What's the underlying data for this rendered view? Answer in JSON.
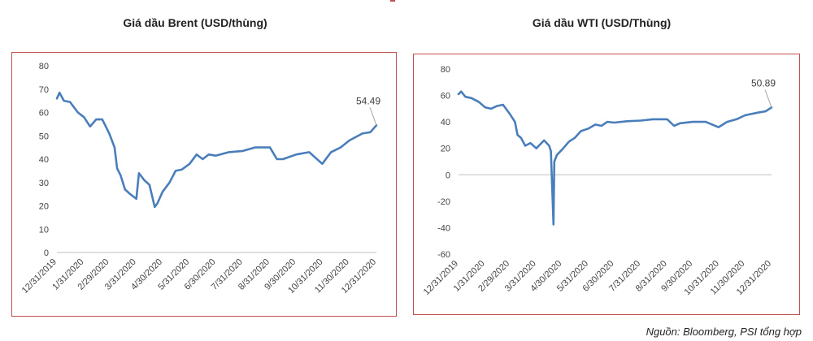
{
  "source": "Nguồn: Bloomberg, PSI tổng hợp",
  "charts": [
    {
      "title": "Giá dầu Brent (USD/thùng)"
    },
    {
      "title": "Giá dầu WTI (USD/Thùng)"
    }
  ],
  "chart_data": [
    {
      "type": "line",
      "title": "Giá dầu Brent (USD/thùng)",
      "xlabel": "",
      "ylabel": "",
      "ylim": [
        0,
        80
      ],
      "yticks": [
        0,
        10,
        20,
        30,
        40,
        50,
        60,
        70,
        80
      ],
      "xticks": [
        "12/31/2019",
        "1/31/2020",
        "2/29/2020",
        "3/31/2020",
        "4/30/2020",
        "5/31/2020",
        "6/30/2020",
        "7/31/2020",
        "8/31/2020",
        "9/30/2020",
        "10/31/2020",
        "11/30/2020",
        "12/31/2020"
      ],
      "grid": false,
      "color": "#4a7ebb",
      "end_label": "54.49",
      "x": [
        "12/31/2019",
        "1/3/2020",
        "1/8/2020",
        "1/15/2020",
        "1/24/2020",
        "1/31/2020",
        "2/7/2020",
        "2/14/2020",
        "2/21/2020",
        "2/29/2020",
        "3/6/2020",
        "3/9/2020",
        "3/13/2020",
        "3/18/2020",
        "3/24/2020",
        "3/31/2020",
        "4/3/2020",
        "4/9/2020",
        "4/15/2020",
        "4/21/2020",
        "4/24/2020",
        "4/30/2020",
        "5/8/2020",
        "5/15/2020",
        "5/22/2020",
        "5/31/2020",
        "6/8/2020",
        "6/15/2020",
        "6/22/2020",
        "6/30/2020",
        "7/15/2020",
        "7/31/2020",
        "8/14/2020",
        "8/31/2020",
        "9/8/2020",
        "9/15/2020",
        "9/30/2020",
        "10/15/2020",
        "10/30/2020",
        "11/9/2020",
        "11/20/2020",
        "11/30/2020",
        "12/15/2020",
        "12/24/2020",
        "12/31/2020"
      ],
      "series": [
        {
          "values": [
            66,
            68.5,
            65,
            64.5,
            60,
            58,
            54,
            57,
            57,
            51,
            45,
            36,
            33,
            27,
            25,
            23,
            34,
            31,
            29,
            19.5,
            21,
            26,
            30,
            35,
            35.5,
            38,
            42,
            40,
            42,
            41.5,
            43,
            43.5,
            45,
            45,
            40,
            40,
            42,
            43,
            38,
            43,
            45,
            48,
            51,
            51.5,
            54.49
          ]
        }
      ]
    },
    {
      "type": "line",
      "title": "Giá dầu WTI (USD/Thùng)",
      "xlabel": "",
      "ylabel": "",
      "ylim": [
        -60,
        80
      ],
      "yticks": [
        -60,
        -40,
        -20,
        0,
        20,
        40,
        60,
        80
      ],
      "xticks": [
        "12/31/2019",
        "1/31/2020",
        "2/29/2020",
        "3/31/2020",
        "4/30/2020",
        "5/31/2020",
        "6/30/2020",
        "7/31/2020",
        "8/31/2020",
        "9/30/2020",
        "10/31/2020",
        "11/30/2020",
        "12/31/2020"
      ],
      "grid": false,
      "color": "#4a7ebb",
      "end_label": "50.89",
      "x": [
        "12/31/2019",
        "1/3/2020",
        "1/8/2020",
        "1/15/2020",
        "1/24/2020",
        "1/31/2020",
        "2/7/2020",
        "2/14/2020",
        "2/21/2020",
        "2/29/2020",
        "3/6/2020",
        "3/9/2020",
        "3/13/2020",
        "3/18/2020",
        "3/24/2020",
        "3/31/2020",
        "4/9/2020",
        "4/15/2020",
        "4/17/2020",
        "4/20/2020",
        "4/21/2020",
        "4/24/2020",
        "4/30/2020",
        "5/8/2020",
        "5/15/2020",
        "5/22/2020",
        "5/31/2020",
        "6/8/2020",
        "6/15/2020",
        "6/22/2020",
        "6/30/2020",
        "7/15/2020",
        "7/31/2020",
        "8/14/2020",
        "8/31/2020",
        "9/8/2020",
        "9/15/2020",
        "9/30/2020",
        "10/15/2020",
        "10/30/2020",
        "11/9/2020",
        "11/20/2020",
        "11/30/2020",
        "12/15/2020",
        "12/24/2020",
        "12/31/2020"
      ],
      "series": [
        {
          "values": [
            61,
            63,
            59,
            58,
            55,
            51,
            50,
            52,
            53,
            46,
            40,
            30,
            28,
            22,
            24,
            20,
            26,
            22,
            18,
            -37.6,
            10,
            15,
            19,
            25,
            28,
            33,
            35,
            38,
            37,
            40,
            39.5,
            40.5,
            41,
            42,
            42,
            37,
            39,
            40,
            40,
            36,
            40,
            42,
            45,
            47,
            48,
            50.89
          ]
        }
      ]
    }
  ]
}
